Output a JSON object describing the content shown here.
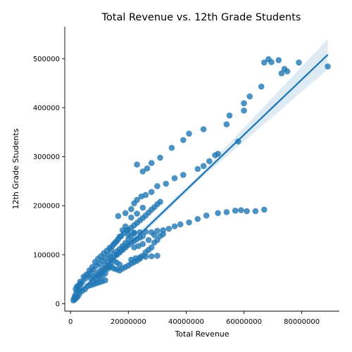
{
  "chart_data": {
    "type": "scatter",
    "title": "Total Revenue vs. 12th Grade Students",
    "xlabel": "Total Revenue",
    "ylabel": "12th Grade Students",
    "xlim": [
      -2000000,
      93000000
    ],
    "ylim": [
      -15000,
      565000
    ],
    "xticks": [
      0,
      20000000,
      40000000,
      60000000,
      80000000
    ],
    "xtick_labels": [
      "0",
      "20000000",
      "40000000",
      "60000000",
      "80000000"
    ],
    "yticks": [
      0,
      100000,
      200000,
      300000,
      400000,
      500000
    ],
    "ytick_labels": [
      "0",
      "100000",
      "200000",
      "300000",
      "400000",
      "500000"
    ],
    "grid": false,
    "point_color": "#1f77b4",
    "regression": {
      "x": [
        900000,
        89000000
      ],
      "y": [
        12000,
        508000
      ],
      "ci_upper_end": 540000,
      "ci_lower_end": 478000
    },
    "series": [
      {
        "values": [
          [
            23000000,
            284000
          ],
          [
            25000000,
            270000
          ],
          [
            26500000,
            276000
          ],
          [
            28000000,
            287000
          ],
          [
            31000000,
            298000
          ],
          [
            35000000,
            318000
          ],
          [
            39000000,
            334000
          ],
          [
            41000000,
            347000
          ],
          [
            46000000,
            356000
          ],
          [
            51000000,
            306000
          ],
          [
            54000000,
            366000
          ],
          [
            55000000,
            384000
          ],
          [
            58000000,
            331000
          ],
          [
            60000000,
            409000
          ],
          [
            60000000,
            394000
          ],
          [
            62000000,
            423000
          ],
          [
            66000000,
            443000
          ],
          [
            67000000,
            492000
          ],
          [
            68500000,
            499000
          ],
          [
            69500000,
            493000
          ],
          [
            72000000,
            497000
          ],
          [
            73000000,
            470000
          ],
          [
            74000000,
            479000
          ],
          [
            75000000,
            474000
          ],
          [
            79000000,
            492000
          ],
          [
            89000000,
            484000
          ],
          [
            16500000,
            179000
          ],
          [
            19000000,
            185000
          ],
          [
            21000000,
            193000
          ],
          [
            22000000,
            205000
          ],
          [
            23000000,
            212000
          ],
          [
            24500000,
            219000
          ],
          [
            26000000,
            222000
          ],
          [
            28000000,
            228000
          ],
          [
            30000000,
            240000
          ],
          [
            33000000,
            245000
          ],
          [
            36000000,
            256000
          ],
          [
            39000000,
            263000
          ],
          [
            44000000,
            275000
          ],
          [
            46000000,
            281000
          ],
          [
            48000000,
            291000
          ],
          [
            50000000,
            303000
          ],
          [
            20000000,
            141000
          ],
          [
            22000000,
            144000
          ],
          [
            24000000,
            146000
          ],
          [
            26000000,
            147000
          ],
          [
            28000000,
            146000
          ],
          [
            30000000,
            149000
          ],
          [
            32000000,
            150000
          ],
          [
            34000000,
            153000
          ],
          [
            36000000,
            158000
          ],
          [
            38000000,
            162000
          ],
          [
            41000000,
            166000
          ],
          [
            44000000,
            173000
          ],
          [
            47000000,
            180000
          ],
          [
            51000000,
            185000
          ],
          [
            54000000,
            187000
          ],
          [
            57000000,
            190000
          ],
          [
            59000000,
            191000
          ],
          [
            61000000,
            189000
          ],
          [
            64000000,
            189000
          ],
          [
            67000000,
            192000
          ],
          [
            21000000,
            90000
          ],
          [
            22500000,
            93000
          ],
          [
            24000000,
            95000
          ],
          [
            26000000,
            96000
          ],
          [
            28000000,
            97000
          ],
          [
            30000000,
            98000
          ],
          [
            22000000,
            115000
          ],
          [
            23500000,
            118000
          ],
          [
            25000000,
            122000
          ],
          [
            27000000,
            130000
          ],
          [
            29000000,
            140000
          ],
          [
            23000000,
            184000
          ],
          [
            25000000,
            196000
          ],
          [
            21000000,
            176000
          ],
          [
            19000000,
            158000
          ],
          [
            18000000,
            150000
          ],
          [
            17000000,
            137000
          ],
          [
            16000000,
            128000
          ],
          [
            15000000,
            122000
          ],
          [
            14000000,
            110000
          ],
          [
            13000000,
            100000
          ],
          [
            12000000,
            93000
          ],
          [
            11000000,
            88000
          ],
          [
            10000000,
            82000
          ],
          [
            9000000,
            78000
          ],
          [
            8000000,
            70000
          ],
          [
            7000000,
            64000
          ],
          [
            6000000,
            58000
          ],
          [
            5000000,
            51000
          ],
          [
            4000000,
            44000
          ],
          [
            3500000,
            40000
          ],
          [
            3000000,
            34000
          ],
          [
            2500000,
            28000
          ],
          [
            2000000,
            22000
          ],
          [
            1500000,
            16000
          ],
          [
            1200000,
            11000
          ],
          [
            1000000,
            7000
          ],
          [
            14000000,
            95000
          ],
          [
            15000000,
            101000
          ],
          [
            16000000,
            107000
          ],
          [
            17000000,
            112000
          ],
          [
            18000000,
            118000
          ],
          [
            19000000,
            124000
          ],
          [
            20000000,
            132000
          ],
          [
            21000000,
            138000
          ],
          [
            22000000,
            145000
          ],
          [
            12000000,
            80000
          ],
          [
            13000000,
            85000
          ],
          [
            14000000,
            90000
          ],
          [
            15000000,
            88000
          ],
          [
            16000000,
            84000
          ],
          [
            17000000,
            80000
          ],
          [
            10000000,
            60000
          ],
          [
            11000000,
            65000
          ],
          [
            12000000,
            70000
          ],
          [
            13000000,
            72000
          ],
          [
            14000000,
            75000
          ],
          [
            9000000,
            50000
          ],
          [
            10000000,
            54000
          ],
          [
            11000000,
            58000
          ],
          [
            12000000,
            62000
          ],
          [
            8000000,
            40000
          ],
          [
            9000000,
            42000
          ],
          [
            10000000,
            44000
          ],
          [
            11000000,
            46000
          ],
          [
            12000000,
            48000
          ],
          [
            7000000,
            52000
          ],
          [
            8000000,
            56000
          ],
          [
            9000000,
            60000
          ],
          [
            10000000,
            66000
          ],
          [
            11000000,
            72000
          ],
          [
            6000000,
            36000
          ],
          [
            7000000,
            38000
          ],
          [
            8000000,
            45000
          ],
          [
            5000000,
            30000
          ],
          [
            4000000,
            26000
          ],
          [
            3000000,
            20000
          ],
          [
            2500000,
            15000
          ],
          [
            2000000,
            12000
          ],
          [
            1500000,
            9000
          ],
          [
            1800000,
            30000
          ],
          [
            2200000,
            35000
          ],
          [
            2800000,
            38000
          ],
          [
            3300000,
            45000
          ],
          [
            4500000,
            55000
          ],
          [
            5500000,
            60000
          ],
          [
            6500000,
            68000
          ],
          [
            7500000,
            75000
          ],
          [
            8500000,
            85000
          ],
          [
            9500000,
            92000
          ],
          [
            10500000,
            97000
          ],
          [
            11500000,
            103000
          ],
          [
            12500000,
            108000
          ],
          [
            13500000,
            114000
          ],
          [
            14500000,
            118000
          ],
          [
            15500000,
            125000
          ],
          [
            16500000,
            132000
          ],
          [
            17500000,
            138000
          ],
          [
            18500000,
            144000
          ],
          [
            19500000,
            150000
          ],
          [
            13000000,
            76000
          ],
          [
            14000000,
            78000
          ],
          [
            15000000,
            72000
          ],
          [
            16000000,
            70000
          ],
          [
            17000000,
            68000
          ],
          [
            18000000,
            72000
          ],
          [
            19000000,
            75000
          ],
          [
            20000000,
            78000
          ],
          [
            21000000,
            82000
          ],
          [
            22000000,
            85000
          ],
          [
            23000000,
            88000
          ],
          [
            24000000,
            92000
          ],
          [
            25000000,
            98000
          ],
          [
            26000000,
            105000
          ],
          [
            27000000,
            110000
          ],
          [
            28000000,
            115000
          ],
          [
            29000000,
            125000
          ],
          [
            30000000,
            130000
          ],
          [
            31000000,
            138000
          ],
          [
            32000000,
            142000
          ],
          [
            16000000,
            100000
          ],
          [
            17000000,
            105000
          ],
          [
            18000000,
            110000
          ],
          [
            19000000,
            115000
          ],
          [
            20000000,
            120000
          ],
          [
            21000000,
            125000
          ],
          [
            22000000,
            128000
          ],
          [
            23000000,
            132000
          ],
          [
            24000000,
            135000
          ],
          [
            25000000,
            138000
          ],
          [
            20000000,
            150000
          ],
          [
            21000000,
            155000
          ],
          [
            22000000,
            160000
          ],
          [
            23000000,
            165000
          ],
          [
            24000000,
            170000
          ],
          [
            25000000,
            175000
          ],
          [
            26000000,
            180000
          ],
          [
            27000000,
            186000
          ],
          [
            28000000,
            192000
          ],
          [
            29000000,
            197000
          ],
          [
            30000000,
            203000
          ],
          [
            31000000,
            208000
          ]
        ]
      }
    ]
  }
}
